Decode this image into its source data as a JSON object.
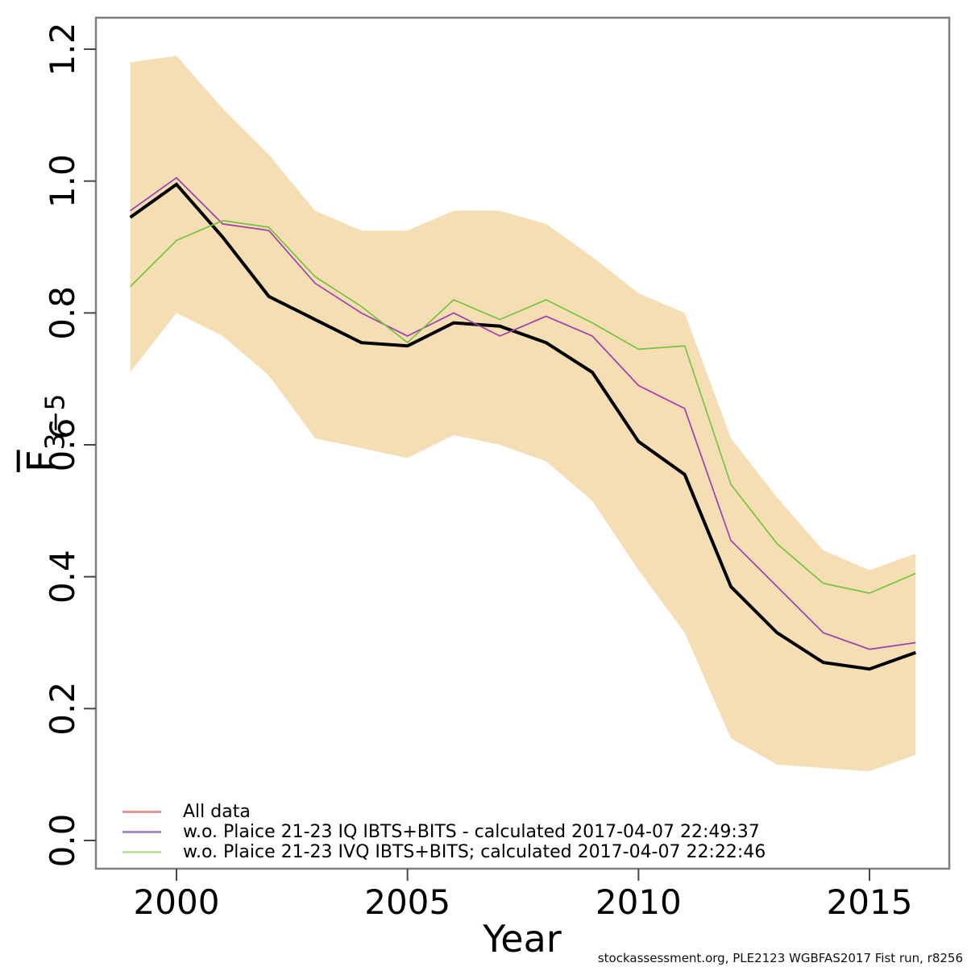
{
  "caption": "stockassessment.org, PLE2123 WGBFAS2017 Fist run, r8256",
  "axes": {
    "xlabel": "Year",
    "ylabel_main": "F",
    "ylabel_sub": "3−5",
    "x_ticks": [
      {
        "year": 2000,
        "label": "2000"
      },
      {
        "year": 2005,
        "label": "2005"
      },
      {
        "year": 2010,
        "label": "2010"
      },
      {
        "year": 2015,
        "label": "2015"
      }
    ],
    "y_ticks": [
      {
        "value": 0.0,
        "label": "0.0"
      },
      {
        "value": 0.2,
        "label": "0.2"
      },
      {
        "value": 0.4,
        "label": "0.4"
      },
      {
        "value": 0.6,
        "label": "0.6"
      },
      {
        "value": 0.8,
        "label": "0.8"
      },
      {
        "value": 1.0,
        "label": "1.0"
      },
      {
        "value": 1.2,
        "label": "1.2"
      }
    ]
  },
  "legend": {
    "items": [
      {
        "label": "All data",
        "color": "#e99393"
      },
      {
        "label": "w.o. Plaice 21-23 IQ IBTS+BITS - calculated 2017-04-07 22:49:37",
        "color": "#ab8ccf"
      },
      {
        "label": "w.o. Plaice 21-23 IVQ IBTS+BITS; calculated 2017-04-07 22:22:46",
        "color": "#bfe19b"
      }
    ]
  },
  "chart_data": {
    "type": "line",
    "title": "",
    "xlabel": "Year",
    "ylabel": "F̅3−5 (mean F, ages 3−5)",
    "x": [
      1999,
      2000,
      2001,
      2002,
      2003,
      2004,
      2005,
      2006,
      2007,
      2008,
      2009,
      2010,
      2011,
      2012,
      2013,
      2014,
      2015,
      2016
    ],
    "xlim": [
      1999,
      2016
    ],
    "ylim": [
      0.0,
      1.2
    ],
    "x_tick_labels": [
      "2000",
      "2005",
      "2010",
      "2015"
    ],
    "y_tick_labels": [
      "0.0",
      "0.2",
      "0.4",
      "0.6",
      "0.8",
      "1.0",
      "1.2"
    ],
    "grid": false,
    "legend_position": "bottom-left",
    "band": {
      "label": "confidence interval of All data run",
      "fill": "#f5deb3",
      "upper": [
        1.18,
        1.19,
        1.11,
        1.04,
        0.955,
        0.925,
        0.925,
        0.955,
        0.955,
        0.935,
        0.885,
        0.83,
        0.8,
        0.61,
        0.52,
        0.44,
        0.41,
        0.435
      ],
      "lower": [
        0.71,
        0.8,
        0.765,
        0.705,
        0.61,
        0.595,
        0.58,
        0.615,
        0.6,
        0.575,
        0.515,
        0.41,
        0.315,
        0.155,
        0.115,
        0.11,
        0.105,
        0.13
      ]
    },
    "series": [
      {
        "name": "All data",
        "color": "#e98c8c",
        "plot_color": "#000000",
        "width": 4,
        "values": [
          0.945,
          0.995,
          0.915,
          0.825,
          0.79,
          0.755,
          0.75,
          0.785,
          0.78,
          0.755,
          0.71,
          0.605,
          0.555,
          0.385,
          0.315,
          0.27,
          0.26,
          0.285
        ]
      },
      {
        "name": "w.o. Plaice 21-23 IQ IBTS+BITS - calculated 2017-04-07 22:49:37",
        "color": "#9d3fae",
        "width": 1.7,
        "values": [
          0.955,
          1.005,
          0.935,
          0.925,
          0.845,
          0.8,
          0.765,
          0.8,
          0.765,
          0.795,
          0.765,
          0.69,
          0.655,
          0.455,
          0.385,
          0.315,
          0.29,
          0.3
        ]
      },
      {
        "name": "w.o. Plaice 21-23 IVQ IBTS+BITS; calculated 2017-04-07 22:22:46",
        "color": "#76c33c",
        "width": 1.7,
        "values": [
          0.84,
          0.91,
          0.94,
          0.93,
          0.855,
          0.81,
          0.755,
          0.82,
          0.79,
          0.82,
          0.785,
          0.745,
          0.75,
          0.54,
          0.45,
          0.39,
          0.375,
          0.405
        ]
      }
    ],
    "caption": "stockassessment.org, PLE2123 WGBFAS2017 Fist run, r8256"
  }
}
